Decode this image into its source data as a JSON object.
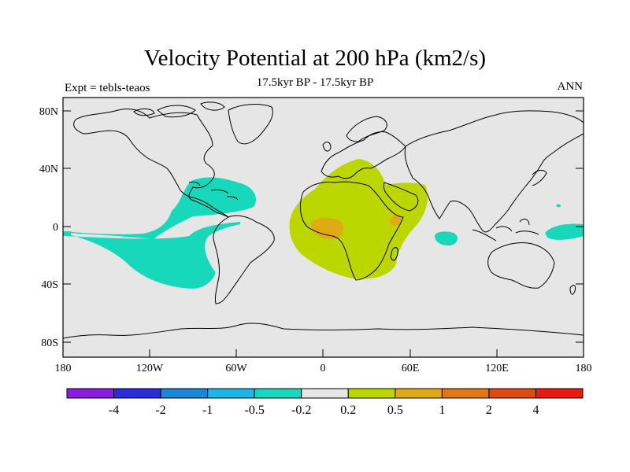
{
  "title": "Velocity Potential at 200 hPa (km2/s)",
  "subtitle": "17.5kyr BP - 17.5kyr BP",
  "left_label": "Expt = tebls-teaos",
  "right_label": "ANN",
  "lat_labels": [
    "80N",
    "40N",
    "0",
    "40S",
    "80S"
  ],
  "lon_labels": [
    "180",
    "120W",
    "60W",
    "0",
    "60E",
    "120E",
    "180"
  ],
  "colorbar": {
    "colors": [
      "#8a1ee0",
      "#2a2ed8",
      "#1c86d8",
      "#1cb6e6",
      "#18d8bc",
      "#e6e6e6",
      "#bcd600",
      "#dfaa14",
      "#e07818",
      "#e04a10",
      "#e81a10"
    ],
    "labels": [
      "-4",
      "-2",
      "-1",
      "-0.5",
      "-0.2",
      "0.2",
      "0.5",
      "1",
      "2",
      "4"
    ]
  },
  "regions": [
    {
      "name": "east-pacific-negative",
      "level": "-0.5 to -0.2",
      "color": "#18d8bc"
    },
    {
      "name": "africa-positive",
      "level": "0.2 to 0.5",
      "color": "#bcd600"
    },
    {
      "name": "central-africa-max",
      "level": "0.5 to 1",
      "color": "#dfaa14"
    },
    {
      "name": "east-africa-max",
      "level": "0.5 to 1",
      "color": "#dfaa14"
    },
    {
      "name": "indian-ocean-negative",
      "level": "-0.5 to -0.2",
      "color": "#18d8bc"
    },
    {
      "name": "west-pacific-negative",
      "level": "-0.5 to -0.2",
      "color": "#18d8bc"
    }
  ]
}
